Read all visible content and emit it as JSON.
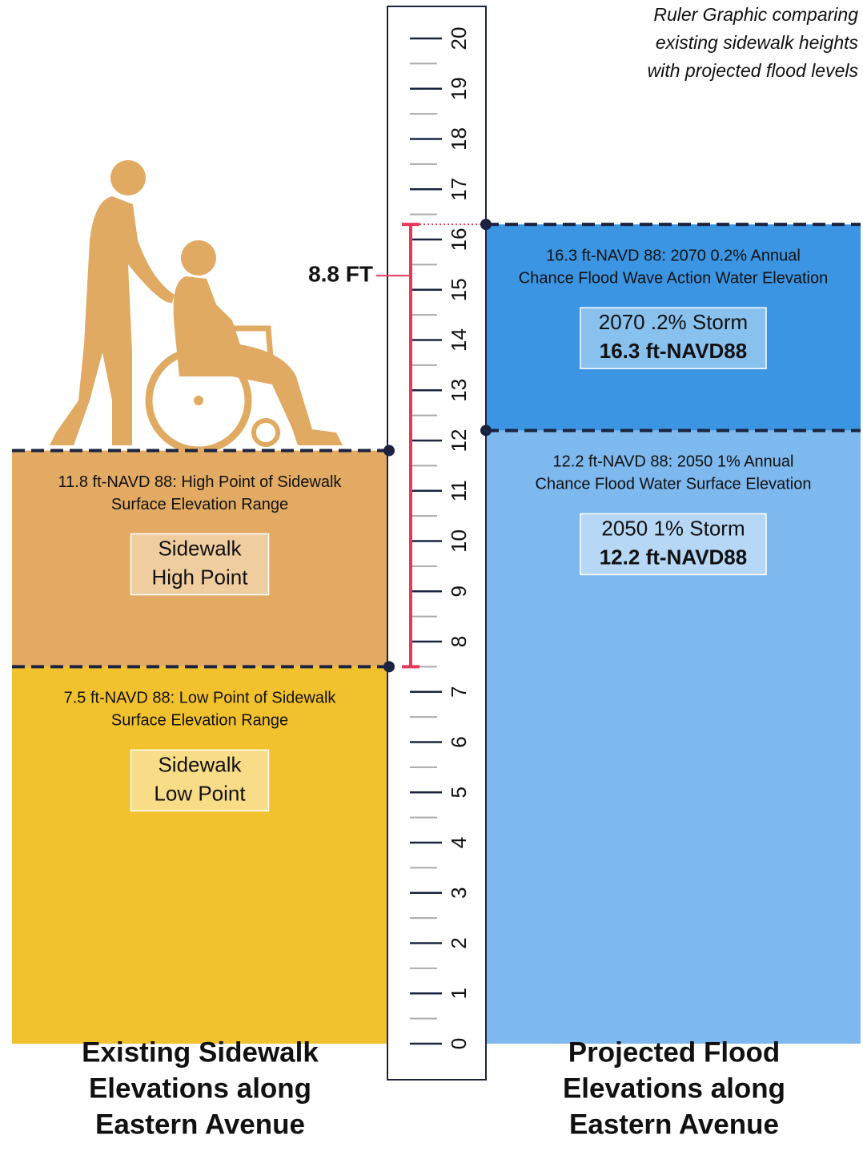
{
  "caption": [
    "Ruler Graphic comparing",
    "existing sidewalk heights",
    "with projected flood levels"
  ],
  "chart_data": {
    "type": "ruler",
    "ylim": [
      0,
      20
    ],
    "yticks": [
      0,
      1,
      2,
      3,
      4,
      5,
      6,
      7,
      8,
      9,
      10,
      11,
      12,
      13,
      14,
      15,
      16,
      17,
      18,
      19,
      20
    ],
    "panels": [
      {
        "title": [
          "Existing Sidewalk",
          "Elevations along",
          "Eastern Avenue"
        ],
        "levels": [
          {
            "value": 7.5,
            "color": "#f2c12e",
            "box_color": "#f8dc88",
            "description": [
              "7.5 ft-NAVD 88: Low Point of Sidewalk",
              "Surface Elevation Range"
            ],
            "label": [
              "Sidewalk",
              "Low Point"
            ]
          },
          {
            "value": 11.8,
            "color": "#e2aa62",
            "box_color": "#efcd9f",
            "description": [
              "11.8 ft-NAVD 88: High Point of Sidewalk",
              "Surface Elevation Range"
            ],
            "label": [
              "Sidewalk",
              "High Point"
            ]
          }
        ]
      },
      {
        "title": [
          "Projected Flood",
          "Elevations along",
          "Eastern Avenue"
        ],
        "levels": [
          {
            "value": 12.2,
            "color": "#7db8ee",
            "box_color": "#b6d7f5",
            "description": [
              "12.2 ft-NAVD 88: 2050 1% Annual",
              "Chance Flood Water Surface Elevation"
            ],
            "label": [
              "2050 1% Storm",
              "12.2 ft-NAVD88"
            ]
          },
          {
            "value": 16.3,
            "color": "#3b95e3",
            "box_color": "#88c0ee",
            "description": [
              "16.3 ft-NAVD 88: 2070 0.2% Annual",
              "Chance Flood Wave Action Water Elevation"
            ],
            "label": [
              "2070 .2% Storm",
              "16.3 ft-NAVD88"
            ]
          }
        ]
      }
    ],
    "difference": {
      "value": 8.8,
      "label": "8.8 FT",
      "color": "#e8395a"
    }
  }
}
